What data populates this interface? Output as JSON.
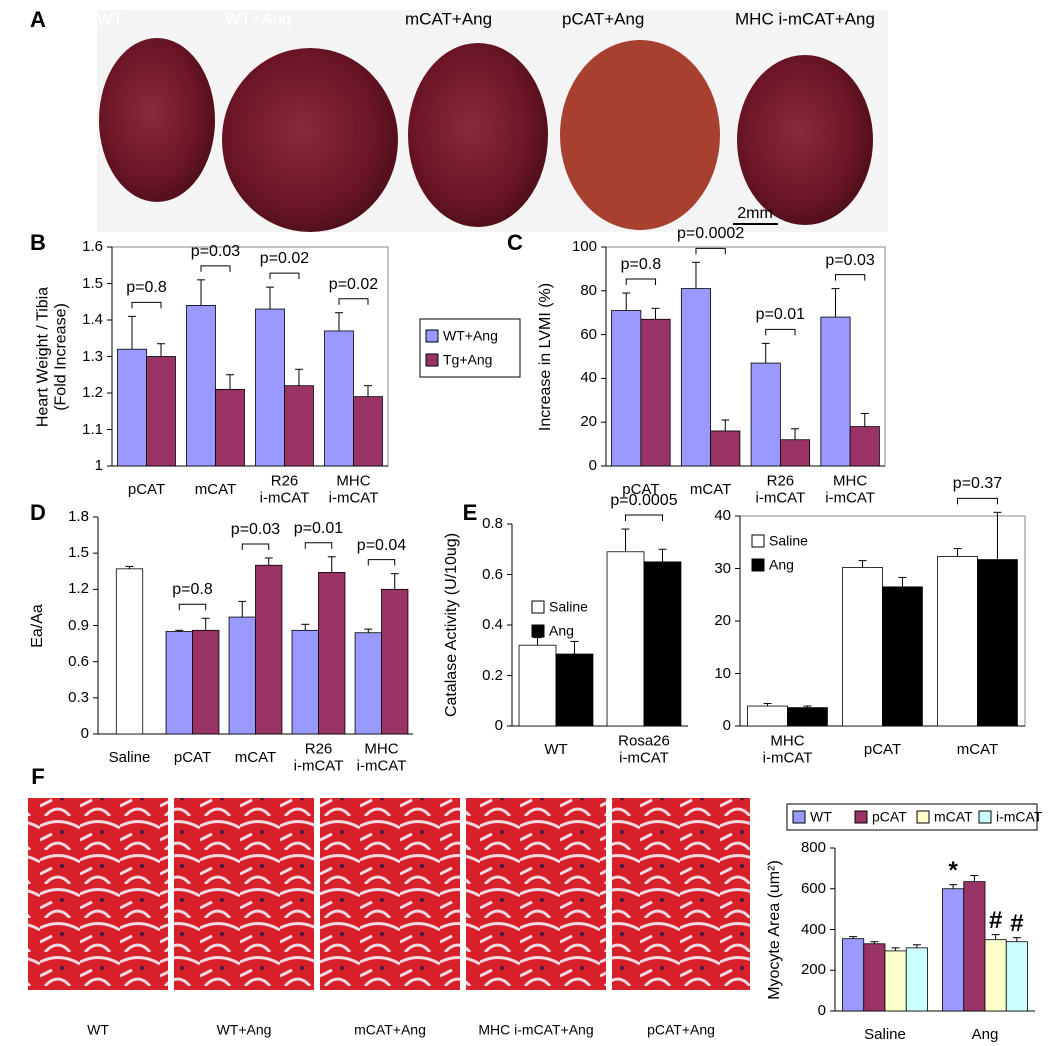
{
  "figure": {
    "panel_labels": [
      "A",
      "B",
      "C",
      "D",
      "E",
      "F"
    ],
    "photos_a": {
      "labels": [
        "WT",
        "WT+Ang",
        "mCAT+Ang",
        "pCAT+Ang",
        "MHC i-mCAT+Ang"
      ],
      "scale_bar": "2mm"
    },
    "photos_f": {
      "labels": [
        "WT",
        "WT+Ang",
        "mCAT+Ang",
        "MHC i-mCAT+Ang",
        "pCAT+Ang"
      ]
    }
  },
  "chart_data": [
    {
      "type": "bar",
      "y_label": "Heart Weight / Tibia\n(Fold Increase)",
      "categories": [
        "pCAT",
        "mCAT",
        "R26\ni-mCAT",
        "MHC\ni-mCAT"
      ],
      "series": [
        {
          "name": "WT+Ang",
          "color": "#9999ff",
          "values": [
            1.32,
            1.44,
            1.43,
            1.37
          ],
          "errors": [
            0.09,
            0.07,
            0.06,
            0.05
          ]
        },
        {
          "name": "Tg+Ang",
          "color": "#993366",
          "values": [
            1.3,
            1.21,
            1.22,
            1.19
          ],
          "errors": [
            0.035,
            0.04,
            0.045,
            0.03
          ]
        }
      ],
      "annotations": [
        "p=0.8",
        "p=0.03",
        "p=0.02",
        "p=0.02"
      ],
      "ylim": [
        1,
        1.6
      ],
      "yticks": [
        1,
        1.1,
        1.2,
        1.3,
        1.4,
        1.5,
        1.6
      ],
      "frame": true,
      "legend": "outside right"
    },
    {
      "type": "bar",
      "y_label": "Increase in LVMI (%)",
      "categories": [
        "pCAT",
        "mCAT",
        "R26\ni-mCAT",
        "MHC\ni-mCAT"
      ],
      "series": [
        {
          "color": "#9999ff",
          "values": [
            71,
            81,
            47,
            68
          ],
          "errors": [
            8,
            12,
            9,
            13
          ]
        },
        {
          "color": "#993366",
          "values": [
            67,
            16,
            12,
            18
          ],
          "errors": [
            5,
            5,
            5,
            6
          ]
        }
      ],
      "annotations": [
        "p=0.8",
        "p=0.0002",
        "p=0.01",
        "p=0.03"
      ],
      "ylim": [
        0,
        100
      ],
      "yticks": [
        0,
        20,
        40,
        60,
        80,
        100
      ],
      "frame": true
    },
    {
      "type": "bar",
      "y_label": "Ea/Aa",
      "categories": [
        "Saline",
        "pCAT",
        "mCAT",
        "R26\ni-mCAT",
        "MHC\ni-mCAT"
      ],
      "series": [
        {
          "color": "#ffffff",
          "values": [
            1.37,
            null,
            null,
            null,
            null
          ],
          "errors": [
            0.02,
            null,
            null,
            null,
            null
          ]
        },
        {
          "color": "#9999ff",
          "values": [
            null,
            0.85,
            0.97,
            0.86,
            0.84
          ],
          "errors": [
            null,
            0.01,
            0.13,
            0.05,
            0.03
          ]
        },
        {
          "color": "#993366",
          "values": [
            null,
            0.86,
            1.4,
            1.34,
            1.2
          ],
          "errors": [
            null,
            0.1,
            0.06,
            0.13,
            0.13
          ]
        }
      ],
      "annotations": [
        null,
        "p=0.8",
        "p=0.03",
        "p=0.01",
        "p=0.04"
      ],
      "ylim": [
        0,
        1.8
      ],
      "yticks": [
        0,
        0.3,
        0.6,
        0.9,
        1.2,
        1.5,
        1.8
      ]
    },
    {
      "type": "bar",
      "y_label": "Catalase Activity (U/10ug)",
      "categories": [
        "WT",
        "Rosa26\ni-mCAT"
      ],
      "series": [
        {
          "name": "Saline",
          "color": "#ffffff",
          "values": [
            0.32,
            0.69
          ],
          "errors": [
            0.03,
            0.09
          ]
        },
        {
          "name": "Ang",
          "color": "#000000",
          "values": [
            0.285,
            0.65
          ],
          "errors": [
            0.05,
            0.05
          ]
        }
      ],
      "annotations": [
        null,
        "p=0.0005"
      ],
      "ylim": [
        0,
        0.8
      ],
      "yticks": [
        0,
        0.2,
        0.4,
        0.6,
        0.8
      ],
      "legend": "center left"
    },
    {
      "type": "bar",
      "categories": [
        "MHC\ni-mCAT",
        "pCAT",
        "mCAT"
      ],
      "series": [
        {
          "name": "Saline",
          "color": "#ffffff",
          "values": [
            3.8,
            30.2,
            32.3
          ],
          "errors": [
            0.5,
            1.3,
            1.5
          ]
        },
        {
          "name": "Ang",
          "color": "#000000",
          "values": [
            3.5,
            26.5,
            31.7
          ],
          "errors": [
            0.3,
            1.8,
            9
          ]
        }
      ],
      "annotations": [
        null,
        null,
        "p=0.37"
      ],
      "ylim": [
        0,
        40
      ],
      "yticks": [
        0,
        10,
        20,
        30,
        40
      ],
      "frame": true,
      "legend": "upper left"
    },
    {
      "type": "bar",
      "y_label": "Myocyte Area (um²)",
      "categories": [
        "Saline",
        "Ang"
      ],
      "series": [
        {
          "name": "WT",
          "color": "#9999ff",
          "values": [
            355,
            600
          ],
          "errors": [
            10,
            20
          ],
          "marks": [
            null,
            "*"
          ]
        },
        {
          "name": "pCAT",
          "color": "#993366",
          "values": [
            330,
            635
          ],
          "errors": [
            10,
            30
          ]
        },
        {
          "name": "mCAT",
          "color": "#ffffcc",
          "values": [
            295,
            350
          ],
          "errors": [
            15,
            25
          ],
          "marks": [
            null,
            "#"
          ]
        },
        {
          "name": "i-mCAT",
          "color": "#ccffff",
          "values": [
            310,
            340
          ],
          "errors": [
            15,
            20
          ],
          "marks": [
            null,
            "#"
          ]
        }
      ],
      "ylim": [
        0,
        800
      ],
      "yticks": [
        0,
        200,
        400,
        600,
        800
      ],
      "legend": "top"
    }
  ]
}
